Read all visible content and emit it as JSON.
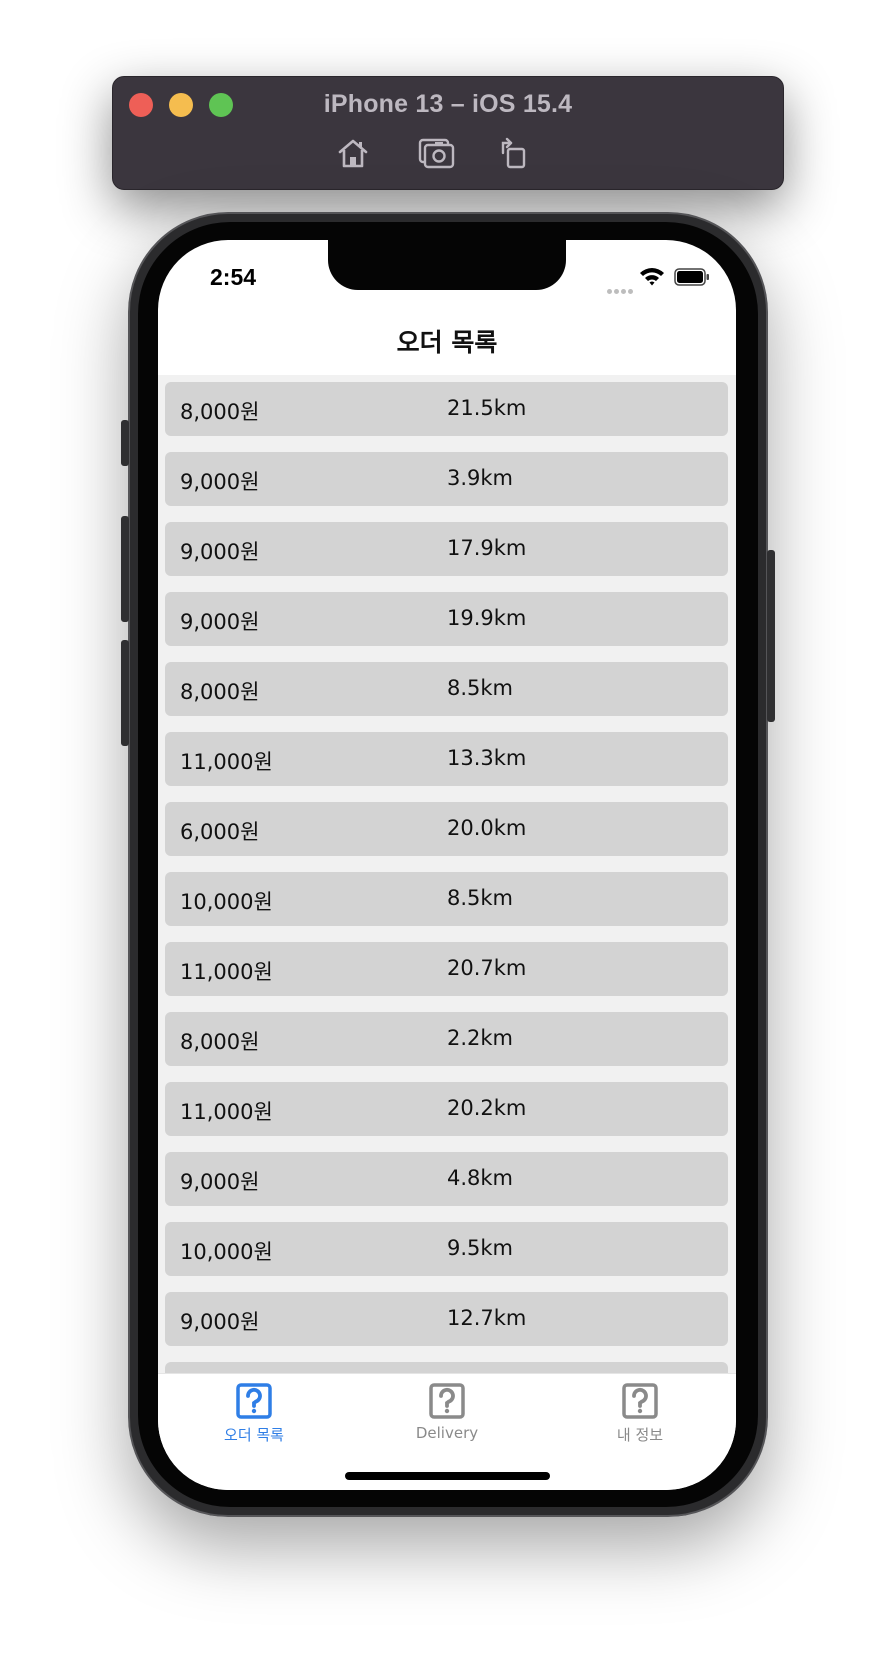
{
  "simulator": {
    "title": "iPhone 13 – iOS 15.4",
    "tools": [
      {
        "icon": "home-icon"
      },
      {
        "icon": "screenshot-icon"
      },
      {
        "icon": "rotate-icon"
      }
    ]
  },
  "status_bar": {
    "time": "2:54"
  },
  "nav": {
    "title": "오더 목록"
  },
  "orders": [
    {
      "price": "8,000원",
      "distance": "21.5km"
    },
    {
      "price": "9,000원",
      "distance": "3.9km"
    },
    {
      "price": "9,000원",
      "distance": "17.9km"
    },
    {
      "price": "9,000원",
      "distance": "19.9km"
    },
    {
      "price": "8,000원",
      "distance": "8.5km"
    },
    {
      "price": "11,000원",
      "distance": "13.3km"
    },
    {
      "price": "6,000원",
      "distance": "20.0km"
    },
    {
      "price": "10,000원",
      "distance": "8.5km"
    },
    {
      "price": "11,000원",
      "distance": "20.7km"
    },
    {
      "price": "8,000원",
      "distance": "2.2km"
    },
    {
      "price": "11,000원",
      "distance": "20.2km"
    },
    {
      "price": "9,000원",
      "distance": "4.8km"
    },
    {
      "price": "10,000원",
      "distance": "9.5km"
    },
    {
      "price": "9,000원",
      "distance": "12.7km"
    },
    {
      "price": "",
      "distance": ""
    }
  ],
  "tab_bar": {
    "tabs": [
      {
        "label": "오더 목록",
        "icon": "question-mark-icon",
        "selected": true
      },
      {
        "label": "Delivery",
        "icon": "question-mark-icon",
        "selected": false
      },
      {
        "label": "내 정보",
        "icon": "question-mark-icon",
        "selected": false
      }
    ]
  },
  "colors": {
    "accent": "#2f7ee6",
    "inactive": "#8a8a8a",
    "row_bg": "#d3d3d3",
    "list_bg": "#f1f1f1"
  }
}
